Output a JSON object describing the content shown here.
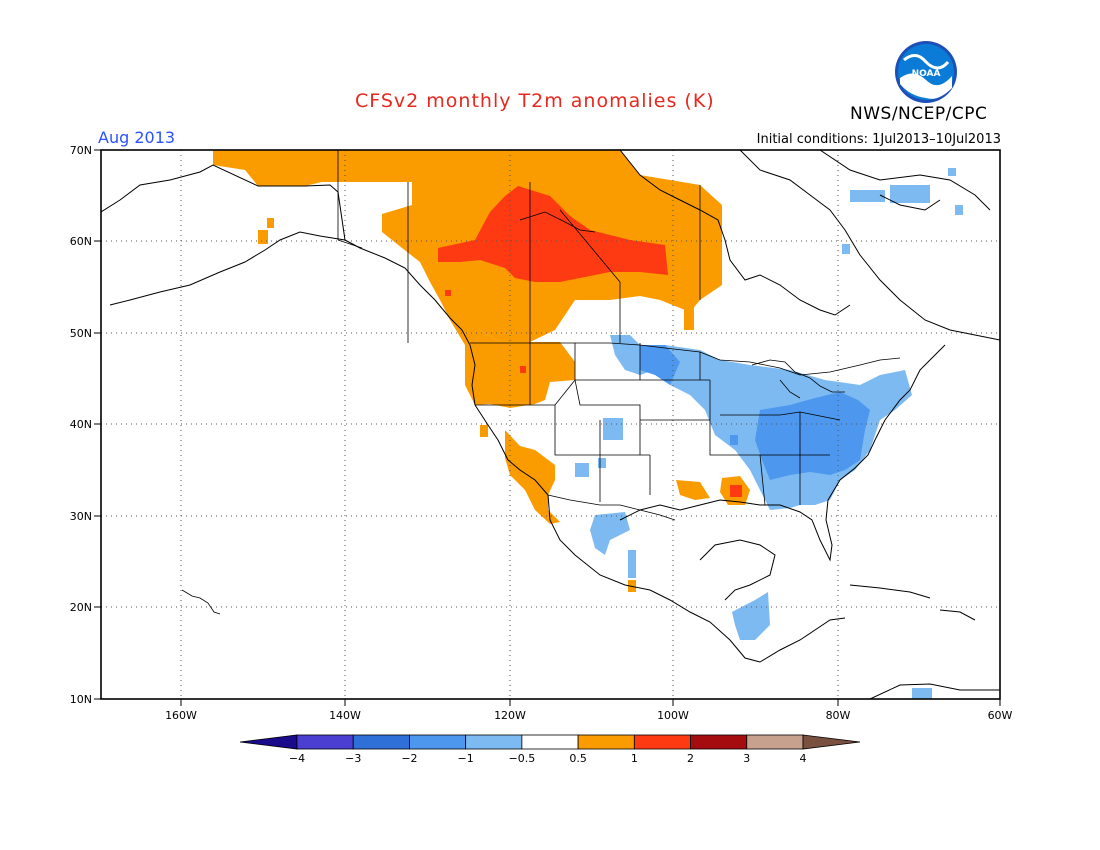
{
  "title": "CFSv2 monthly T2m anomalies (K)",
  "agency": "NWS/NCEP/CPC",
  "logo_text": "NOAA",
  "month": "Aug 2013",
  "initial_conditions": "Initial conditions: 1Jul2013–10Jul2013",
  "lat_labels": [
    "70N",
    "60N",
    "50N",
    "40N",
    "30N",
    "20N",
    "10N"
  ],
  "lon_labels": [
    "160W",
    "140W",
    "120W",
    "100W",
    "80W",
    "60W"
  ],
  "colorbar": {
    "labels": [
      "−4",
      "−3",
      "−2",
      "−1",
      "−0.5",
      "0.5",
      "1",
      "2",
      "3",
      "4"
    ],
    "colors": [
      "#1a0a8c",
      "#4a3fd1",
      "#2f6fd8",
      "#4d97ee",
      "#7dbaf2",
      "#ffffff",
      "#fa9c00",
      "#fd3a12",
      "#a50c10",
      "#c7a08e",
      "#7a5040"
    ]
  },
  "anomaly_colors": {
    "pos_0_5_to_1": "#fa9c00",
    "pos_1_to_2": "#fd3a12",
    "neg_1_to_0_5": "#7dbaf2",
    "neg_2_to_1": "#4d97ee"
  }
}
